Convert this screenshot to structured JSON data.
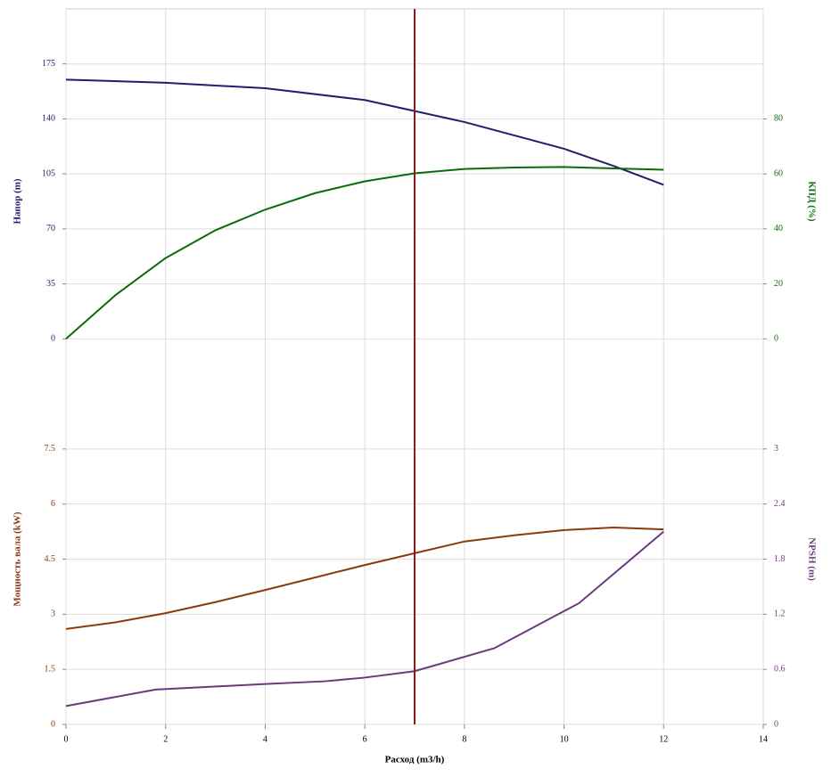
{
  "chart_data": [
    {
      "type": "line",
      "ylabel": "Напор (m)",
      "y2label": "КПД (%)",
      "ylim": [
        -35,
        210
      ],
      "yticks": [
        0,
        35,
        70,
        105,
        140,
        175
      ],
      "y2lim": [
        -20,
        120
      ],
      "y2ticks": [
        0,
        20,
        40,
        60,
        80
      ],
      "ylabel_color": "#1f1f6e",
      "y2label_color": "#0a6b0a",
      "marker_x": 7,
      "marker_color": "#8b1a1a",
      "grid": true,
      "series": [
        {
          "color": "#1f1f6e",
          "axis": "y",
          "x": [
            0,
            2,
            4,
            6,
            7,
            8,
            10,
            11,
            12
          ],
          "values": [
            165,
            163,
            159.5,
            152,
            145,
            138,
            121,
            110,
            98
          ]
        },
        {
          "color": "#0a6b0a",
          "axis": "y2",
          "x": [
            0,
            1,
            2,
            3,
            4,
            5,
            6,
            7,
            8,
            9,
            10,
            11,
            12
          ],
          "values": [
            0,
            16,
            29.4,
            39.5,
            47,
            53,
            57.3,
            60.2,
            61.8,
            62.3,
            62.5,
            62,
            61.5
          ]
        }
      ]
    },
    {
      "type": "line",
      "xlabel": "Расход (m3/h)",
      "xlim": [
        0,
        14
      ],
      "xticks": [
        0,
        2,
        4,
        6,
        8,
        10,
        12,
        14
      ],
      "ylabel": "Мощность вала (kW)",
      "y2label": "NPSH (m)",
      "ylim": [
        0,
        9
      ],
      "yticks": [
        0,
        1.5,
        3,
        4.5,
        6,
        7.5
      ],
      "y2lim": [
        0,
        3.6
      ],
      "y2ticks": [
        0,
        0.6,
        1.2,
        1.8,
        2.4,
        3
      ],
      "ylabel_color": "#8b3a0f",
      "y2label_color": "#6b3a7a",
      "grid": true,
      "series": [
        {
          "color": "#8b3a0f",
          "axis": "y",
          "x": [
            0,
            1,
            2,
            3,
            4,
            5,
            6,
            7,
            8,
            9,
            10,
            11,
            12
          ],
          "values": [
            2.6,
            2.78,
            3.03,
            3.33,
            3.66,
            4.0,
            4.34,
            4.66,
            4.98,
            5.15,
            5.29,
            5.36,
            5.31
          ]
        },
        {
          "color": "#6b3a7a",
          "axis": "y2",
          "x": [
            0,
            1.8,
            4,
            5.2,
            6,
            7,
            8.6,
            10.3,
            12
          ],
          "values": [
            0.2,
            0.38,
            0.44,
            0.47,
            0.51,
            0.58,
            0.83,
            1.32,
            2.1
          ]
        }
      ]
    }
  ]
}
